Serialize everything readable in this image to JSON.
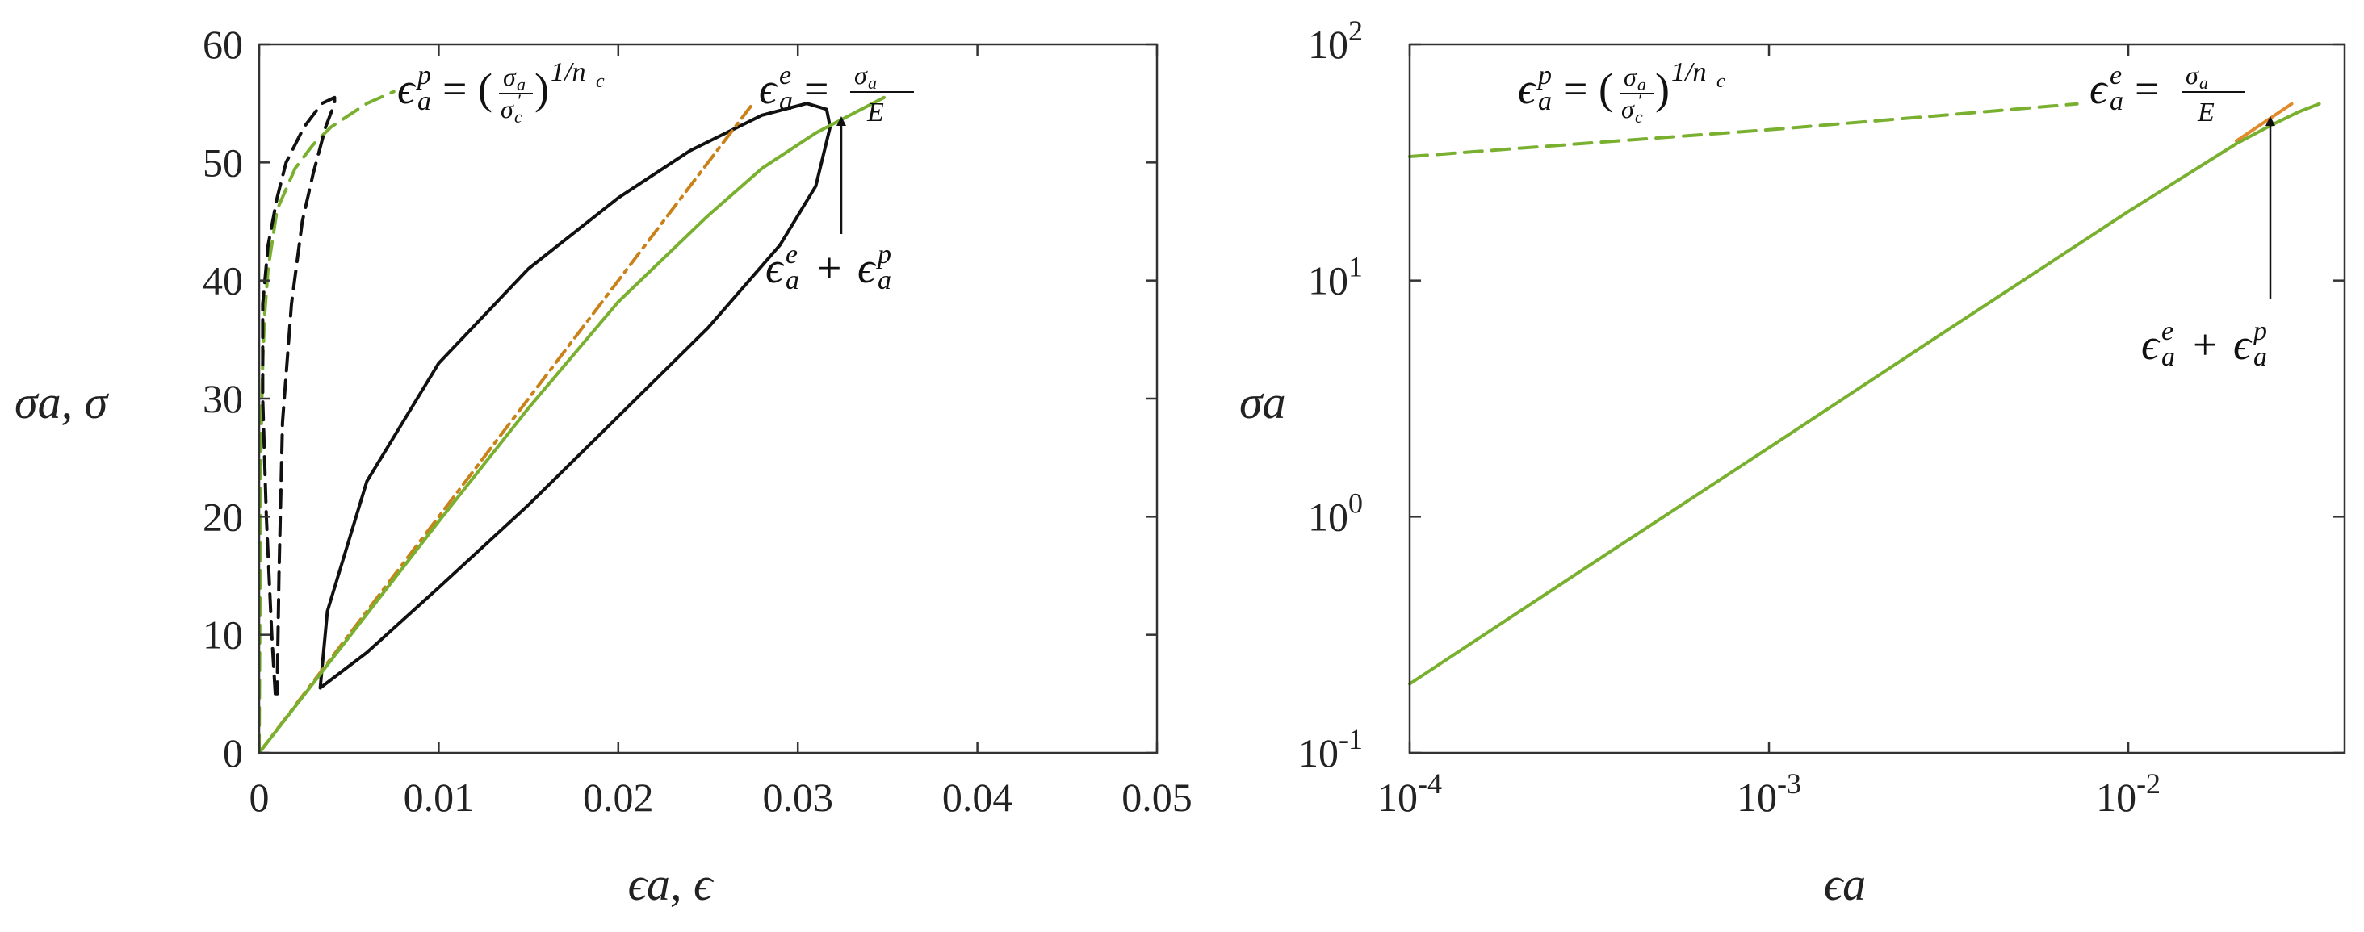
{
  "chart_data": [
    {
      "type": "line",
      "xlim": [
        0,
        0.05
      ],
      "ylim": [
        0,
        60
      ],
      "x_ticks": [
        "0",
        "0.01",
        "0.02",
        "0.03",
        "0.04",
        "0.05"
      ],
      "y_ticks": [
        "0",
        "10",
        "20",
        "30",
        "40",
        "50",
        "60"
      ],
      "xlabel": "ϵa, ϵ",
      "ylabel": "σa, σ",
      "grid": false,
      "annotations": [
        "ϵ_a^p = (σ_a/σ_c′)^{1/n_c}",
        "ϵ_a^e = σ_a/E",
        "ϵ_a^e + ϵ_a^p"
      ],
      "series": [
        {
          "style": "dashed",
          "color": "#7ab030",
          "x": [
            0,
            5e-05,
            0.0001,
            0.0002,
            0.0003,
            0.0005,
            0.001,
            0.002,
            0.003,
            0.004,
            0.006,
            0.0075
          ],
          "y": [
            0,
            14,
            26,
            33,
            37,
            41,
            46,
            49.5,
            51.5,
            53,
            55,
            56
          ]
        },
        {
          "style": "dashed",
          "color": "#111111",
          "x": [
            0.0009,
            0.0007,
            0.0004,
            0.0002,
            0.0002,
            0.0005,
            0.001,
            0.0015,
            0.0025,
            0.0035,
            0.0042,
            0.0042,
            0.0037,
            0.003,
            0.0024,
            0.0018,
            0.0013,
            0.0011,
            0.001
          ],
          "y": [
            5,
            10,
            20,
            30,
            38,
            43,
            47,
            50,
            53,
            55,
            55.5,
            55,
            53,
            49,
            45,
            38,
            28,
            15,
            5
          ]
        },
        {
          "style": "solid",
          "color": "#111111",
          "x": [
            0.0034,
            0.006,
            0.01,
            0.015,
            0.02,
            0.025,
            0.029,
            0.031,
            0.0318,
            0.0316,
            0.0305,
            0.028,
            0.024,
            0.02,
            0.015,
            0.01,
            0.006,
            0.0038,
            0.0034
          ],
          "y": [
            5.5,
            8.5,
            14,
            21,
            28.5,
            36,
            43,
            48,
            53,
            54.5,
            55,
            54,
            51,
            47,
            41,
            33,
            23,
            12,
            5.5
          ]
        },
        {
          "style": "dashdot",
          "color": "#c9821a",
          "x": [
            0,
            0.005,
            0.01,
            0.015,
            0.02,
            0.025,
            0.0275
          ],
          "y": [
            0,
            10,
            20,
            30,
            40,
            50,
            55
          ]
        },
        {
          "style": "solid",
          "color": "#7ab030",
          "x": [
            0,
            0.005,
            0.01,
            0.015,
            0.02,
            0.025,
            0.028,
            0.031,
            0.0348
          ],
          "y": [
            0,
            9.8,
            19.6,
            29.2,
            38.2,
            45.5,
            49.5,
            52.5,
            55.5
          ]
        }
      ]
    },
    {
      "type": "line",
      "xscale": "log",
      "yscale": "log",
      "xlim": [
        0.0001,
        0.04
      ],
      "ylim": [
        0.1,
        100
      ],
      "x_ticks": [
        {
          "base": "10",
          "exp": "-4"
        },
        {
          "base": "10",
          "exp": "-3"
        },
        {
          "base": "10",
          "exp": "-2"
        }
      ],
      "y_ticks": [
        {
          "base": "10",
          "exp": "-1"
        },
        {
          "base": "10",
          "exp": "0"
        },
        {
          "base": "10",
          "exp": "1"
        },
        {
          "base": "10",
          "exp": "2"
        }
      ],
      "xlabel": "ϵa",
      "ylabel": "σa",
      "grid": false,
      "annotations": [
        "ϵ_a^p = (σ_a/σ_c′)^{1/n_c}",
        "ϵ_a^e = σ_a/E",
        "ϵ_a^e + ϵ_a^p"
      ],
      "series": [
        {
          "style": "dashed",
          "color": "#7ab030",
          "x": [
            0.0001,
            0.0003,
            0.001,
            0.003,
            0.0072
          ],
          "y": [
            33.5,
            38,
            43.5,
            50,
            56
          ]
        },
        {
          "style": "solid",
          "color": "#e08a2c",
          "x": [
            0.02,
            0.024,
            0.0285
          ],
          "y": [
            39,
            47,
            56
          ]
        },
        {
          "style": "solid",
          "color": "#7ab030",
          "x": [
            0.0001,
            0.0003,
            0.001,
            0.003,
            0.01,
            0.02,
            0.025,
            0.03,
            0.034
          ],
          "y": [
            0.196,
            0.59,
            1.96,
            5.9,
            19.6,
            38,
            45.5,
            52,
            56
          ]
        }
      ]
    }
  ]
}
